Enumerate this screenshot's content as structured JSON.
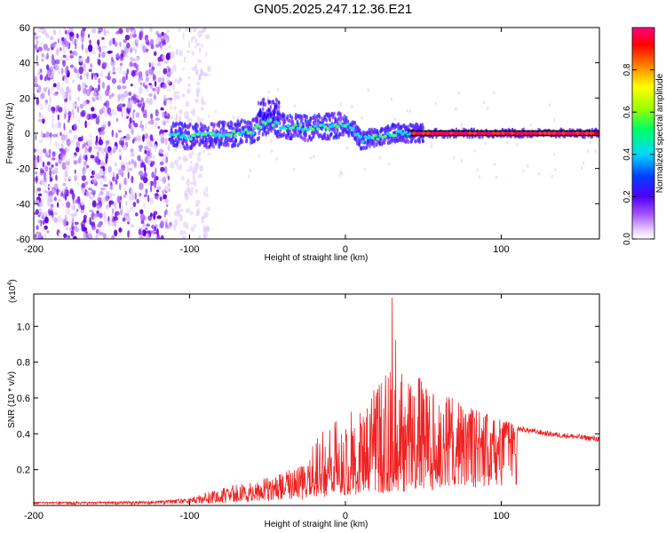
{
  "title": "GN05.2025.247.12.36.E21",
  "chart_data": [
    {
      "type": "heatmap",
      "name": "spectrogram",
      "xlabel": "Height of straight line (km)",
      "ylabel": "Frequency (Hz)",
      "xlim": [
        -200,
        163
      ],
      "ylim": [
        -60,
        60
      ],
      "xticks": [
        -200,
        -100,
        0,
        100
      ],
      "yticks": [
        -60,
        -40,
        -20,
        0,
        20,
        40,
        60
      ],
      "xtick_labels": [
        "-200",
        "-100",
        "0",
        "100"
      ],
      "ytick_labels": [
        "-60",
        "-40",
        "-20",
        "0",
        "20",
        "40",
        "60"
      ],
      "colorbar": {
        "label": "Normalized spectral amplitude",
        "range": [
          0,
          1
        ],
        "ticks": [
          0.0,
          0.2,
          0.4,
          0.6,
          0.8
        ],
        "tick_labels": [
          "0.0",
          "0.2",
          "0.4",
          "0.6",
          "0.8"
        ]
      },
      "noise_region_x": [
        -200,
        -112
      ],
      "ridge": [
        {
          "x": -112,
          "f": 0
        },
        {
          "x": -100,
          "f": -2
        },
        {
          "x": -85,
          "f": -1
        },
        {
          "x": -70,
          "f": 0
        },
        {
          "x": -60,
          "f": 1
        },
        {
          "x": -50,
          "f": 7
        },
        {
          "x": -40,
          "f": 4
        },
        {
          "x": -25,
          "f": 3
        },
        {
          "x": -10,
          "f": 4
        },
        {
          "x": 0,
          "f": 5
        },
        {
          "x": 5,
          "f": 2
        },
        {
          "x": 10,
          "f": -4
        },
        {
          "x": 20,
          "f": -2
        },
        {
          "x": 30,
          "f": 0
        },
        {
          "x": 40,
          "f": 0
        },
        {
          "x": 60,
          "f": 0
        },
        {
          "x": 100,
          "f": 0
        },
        {
          "x": 163,
          "f": 0
        }
      ]
    },
    {
      "type": "line",
      "name": "snr",
      "xlabel": "Height of straight line (km)",
      "ylabel": "SNR (10 * v/v)",
      "y_multiplier": "(x10",
      "y_multiplier_exp": "4",
      "y_multiplier_close": ")",
      "xlim": [
        -200,
        163
      ],
      "ylim": [
        0,
        1.18
      ],
      "xticks": [
        -200,
        -100,
        0,
        100
      ],
      "yticks": [
        0.2,
        0.4,
        0.6,
        0.8,
        1.0
      ],
      "xtick_labels": [
        "-200",
        "-100",
        "0",
        "100"
      ],
      "ytick_labels": [
        "0.2",
        "0.4",
        "0.6",
        "0.8",
        "1.0"
      ],
      "color": "#ee2222",
      "envelope_x": [
        -200,
        -160,
        -120,
        -100,
        -80,
        -60,
        -40,
        -25,
        -15,
        -5,
        5,
        15,
        25,
        30,
        35,
        50,
        70,
        90,
        110,
        130,
        163
      ],
      "envelope_y": [
        0.02,
        0.02,
        0.025,
        0.04,
        0.1,
        0.14,
        0.18,
        0.28,
        0.42,
        0.48,
        0.55,
        0.62,
        0.72,
        1.16,
        0.78,
        0.72,
        0.6,
        0.52,
        0.45,
        0.42,
        0.39
      ],
      "baseline_x": [
        -200,
        -120,
        -100,
        -60,
        -30,
        -10,
        10,
        40,
        70,
        100,
        120,
        163
      ],
      "baseline_y": [
        0.015,
        0.02,
        0.03,
        0.06,
        0.1,
        0.15,
        0.2,
        0.25,
        0.3,
        0.36,
        0.38,
        0.36
      ]
    }
  ]
}
